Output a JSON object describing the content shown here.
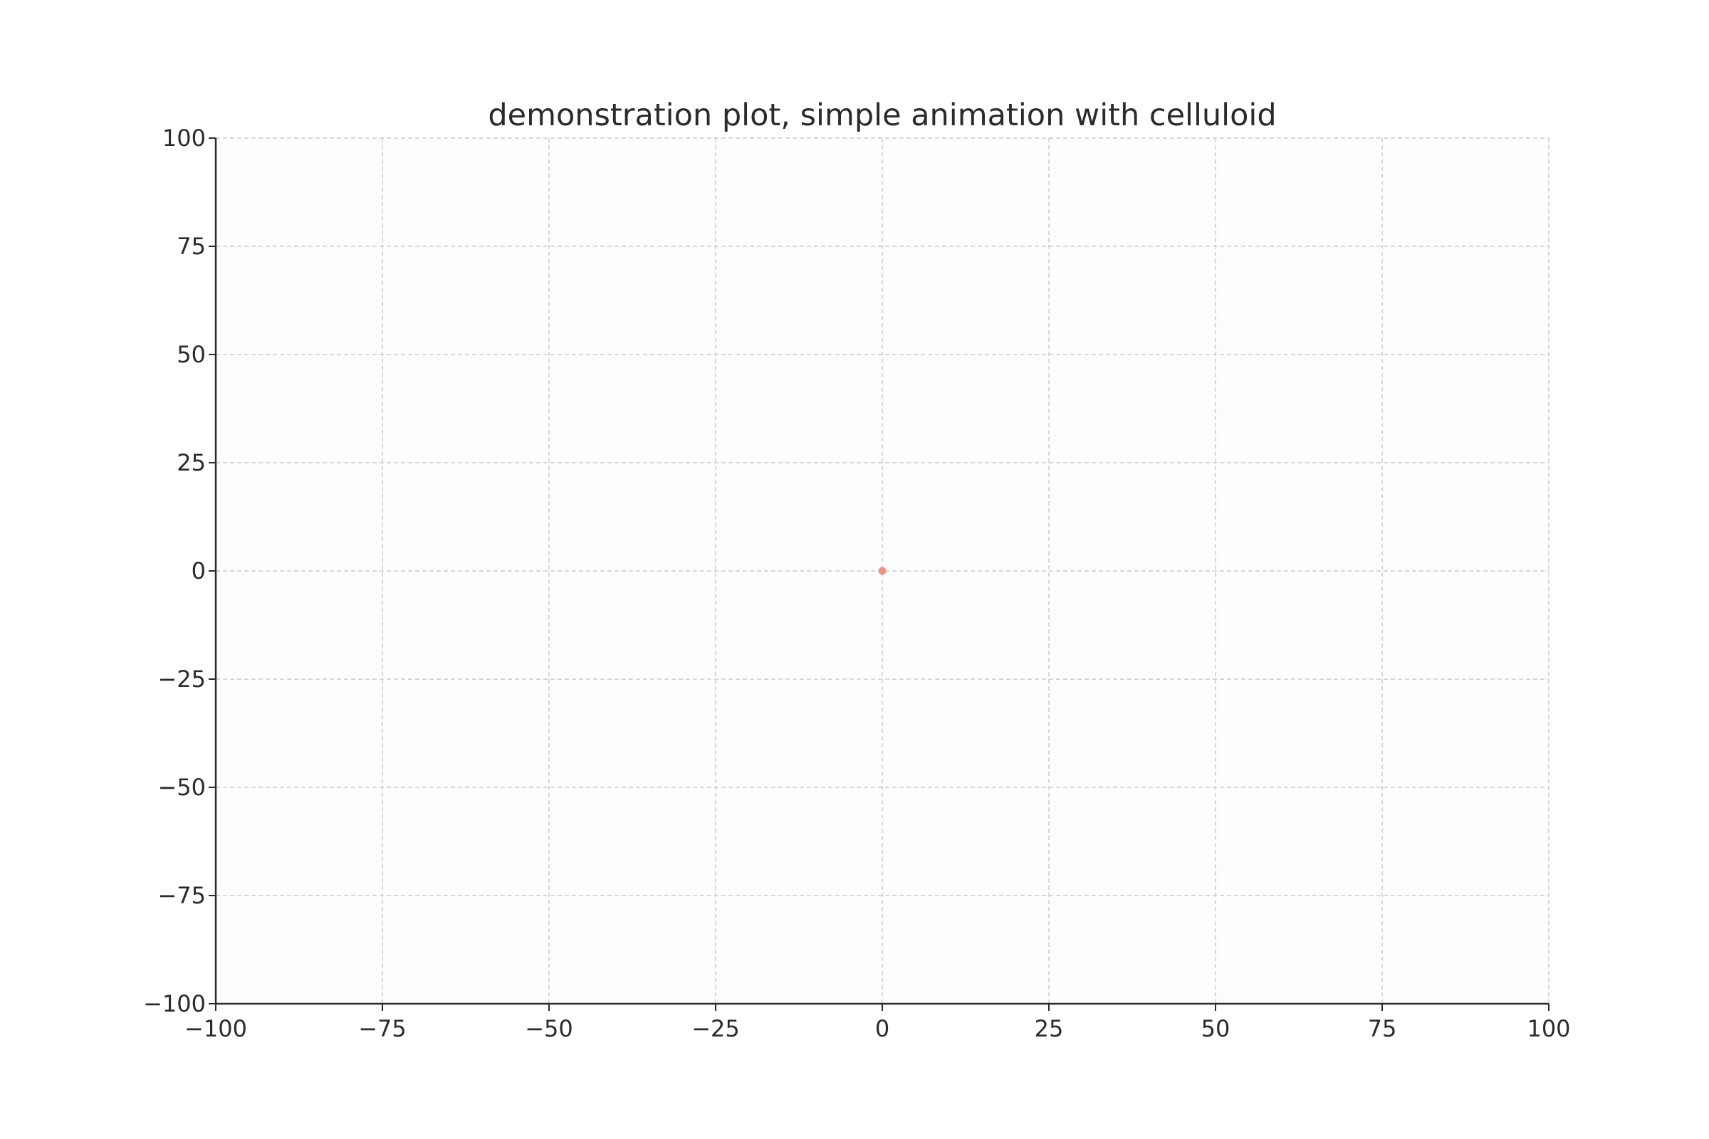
{
  "chart_data": {
    "type": "scatter",
    "title": "demonstration plot, simple animation with celluloid",
    "xlabel": "",
    "ylabel": "",
    "xlim": [
      -100,
      100
    ],
    "ylim": [
      -100,
      100
    ],
    "x_ticks": [
      -100,
      -75,
      -50,
      -25,
      0,
      25,
      50,
      75,
      100
    ],
    "y_ticks": [
      -100,
      -75,
      -50,
      -25,
      0,
      25,
      50,
      75,
      100
    ],
    "x_tick_labels": [
      "−100",
      "−75",
      "−50",
      "−25",
      "0",
      "25",
      "50",
      "75",
      "100"
    ],
    "y_tick_labels": [
      "−100",
      "−75",
      "−50",
      "−25",
      "0",
      "25",
      "50",
      "75",
      "100"
    ],
    "grid": true,
    "grid_style": "dashed",
    "series": [
      {
        "points": [
          {
            "x": 0,
            "y": 0
          }
        ],
        "color": "#f08a78"
      }
    ],
    "colors": {
      "background": "#fdfdfd",
      "grid": "#cccccc",
      "axis": "#2b2b2b",
      "text": "#2b2b2b"
    }
  }
}
